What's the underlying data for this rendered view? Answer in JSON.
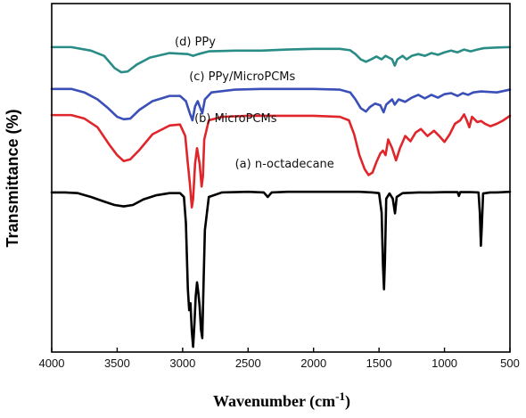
{
  "chart_data": {
    "type": "line",
    "xlabel": "Wavenumber (cm",
    "xlabel_sup": "-1",
    "xlabel_close": ")",
    "ylabel": "Transmittance (%)",
    "xlim": [
      4000,
      500
    ],
    "x_reversed": true,
    "ylim": [
      0,
      100
    ],
    "y_ticks_shown": false,
    "grid": false,
    "x_ticks": [
      {
        "value": 4000,
        "label": "4000"
      },
      {
        "value": 3500,
        "label": "3500"
      },
      {
        "value": 3000,
        "label": "3000"
      },
      {
        "value": 2500,
        "label": "2500"
      },
      {
        "value": 2000,
        "label": "2000"
      },
      {
        "value": 1500,
        "label": "1500"
      },
      {
        "value": 1000,
        "label": "1000"
      },
      {
        "value": 500,
        "label": "500"
      }
    ],
    "series": [
      {
        "name": "(d) PPy",
        "color": "#2a8c86",
        "label_at": [
          3060,
          88
        ],
        "points": [
          [
            4000,
            87.5
          ],
          [
            3850,
            87.5
          ],
          [
            3700,
            86.5
          ],
          [
            3600,
            85
          ],
          [
            3520,
            81.5
          ],
          [
            3470,
            80.3
          ],
          [
            3420,
            80.5
          ],
          [
            3350,
            82.5
          ],
          [
            3250,
            84.5
          ],
          [
            3100,
            85.8
          ],
          [
            2960,
            85.5
          ],
          [
            2920,
            85
          ],
          [
            2880,
            85.5
          ],
          [
            2800,
            86.3
          ],
          [
            2600,
            86.5
          ],
          [
            2400,
            86.5
          ],
          [
            2200,
            86.8
          ],
          [
            2000,
            87
          ],
          [
            1800,
            87
          ],
          [
            1720,
            86.6
          ],
          [
            1680,
            85.5
          ],
          [
            1640,
            84
          ],
          [
            1600,
            83.3
          ],
          [
            1560,
            84
          ],
          [
            1520,
            84.8
          ],
          [
            1480,
            84
          ],
          [
            1450,
            85
          ],
          [
            1400,
            84
          ],
          [
            1380,
            82.2
          ],
          [
            1360,
            84
          ],
          [
            1320,
            85
          ],
          [
            1290,
            84
          ],
          [
            1250,
            85
          ],
          [
            1200,
            85.5
          ],
          [
            1150,
            85
          ],
          [
            1100,
            85.8
          ],
          [
            1050,
            85.3
          ],
          [
            1000,
            86
          ],
          [
            950,
            86.5
          ],
          [
            900,
            86
          ],
          [
            850,
            86.8
          ],
          [
            800,
            86.3
          ],
          [
            750,
            86.8
          ],
          [
            700,
            87.2
          ],
          [
            600,
            87.4
          ],
          [
            500,
            87.5
          ]
        ]
      },
      {
        "name": "(c) PPy/MicroPCMs",
        "color": "#3a4fb8",
        "label_at": [
          2950,
          78
        ],
        "points": [
          [
            4000,
            75.5
          ],
          [
            3850,
            75.5
          ],
          [
            3750,
            74.5
          ],
          [
            3650,
            72.5
          ],
          [
            3570,
            70
          ],
          [
            3500,
            67.5
          ],
          [
            3450,
            66.8
          ],
          [
            3400,
            67
          ],
          [
            3330,
            69.5
          ],
          [
            3230,
            72
          ],
          [
            3100,
            73.5
          ],
          [
            3020,
            73.5
          ],
          [
            2975,
            72
          ],
          [
            2945,
            68.5
          ],
          [
            2925,
            66.5
          ],
          [
            2905,
            70.5
          ],
          [
            2885,
            72
          ],
          [
            2865,
            70
          ],
          [
            2850,
            68.5
          ],
          [
            2830,
            72.5
          ],
          [
            2780,
            74.5
          ],
          [
            2600,
            75.3
          ],
          [
            2400,
            75.5
          ],
          [
            2200,
            75.5
          ],
          [
            2000,
            75.5
          ],
          [
            1800,
            75.3
          ],
          [
            1720,
            74.5
          ],
          [
            1680,
            72.5
          ],
          [
            1640,
            70
          ],
          [
            1600,
            69
          ],
          [
            1570,
            70.3
          ],
          [
            1530,
            71.3
          ],
          [
            1490,
            70.8
          ],
          [
            1465,
            68.8
          ],
          [
            1445,
            71
          ],
          [
            1400,
            72.5
          ],
          [
            1380,
            71
          ],
          [
            1350,
            72.5
          ],
          [
            1300,
            71.8
          ],
          [
            1250,
            73
          ],
          [
            1200,
            73.8
          ],
          [
            1150,
            72.8
          ],
          [
            1100,
            73.8
          ],
          [
            1050,
            73
          ],
          [
            1000,
            74
          ],
          [
            950,
            74.3
          ],
          [
            900,
            73.5
          ],
          [
            860,
            74.3
          ],
          [
            820,
            73.8
          ],
          [
            780,
            74.5
          ],
          [
            720,
            74.8
          ],
          [
            600,
            74.5
          ],
          [
            500,
            75.3
          ]
        ]
      },
      {
        "name": "(b) MicroPCMs",
        "color": "#e0262a",
        "label_at": [
          2910,
          66
        ],
        "points": [
          [
            4000,
            68
          ],
          [
            3850,
            68
          ],
          [
            3750,
            67
          ],
          [
            3650,
            64.5
          ],
          [
            3560,
            59.5
          ],
          [
            3500,
            56.5
          ],
          [
            3450,
            54.8
          ],
          [
            3400,
            55.3
          ],
          [
            3330,
            58
          ],
          [
            3230,
            62.5
          ],
          [
            3100,
            65
          ],
          [
            3020,
            65.3
          ],
          [
            2980,
            62
          ],
          [
            2960,
            54
          ],
          [
            2945,
            48.5
          ],
          [
            2930,
            41.5
          ],
          [
            2920,
            44
          ],
          [
            2905,
            54
          ],
          [
            2890,
            58.5
          ],
          [
            2870,
            54
          ],
          [
            2855,
            47.5
          ],
          [
            2845,
            50.5
          ],
          [
            2835,
            61
          ],
          [
            2800,
            66.5
          ],
          [
            2700,
            67.5
          ],
          [
            2500,
            67.8
          ],
          [
            2300,
            67.8
          ],
          [
            2000,
            67.8
          ],
          [
            1800,
            67.5
          ],
          [
            1730,
            66.5
          ],
          [
            1690,
            62.5
          ],
          [
            1650,
            56.5
          ],
          [
            1610,
            52.5
          ],
          [
            1580,
            50.8
          ],
          [
            1550,
            51.5
          ],
          [
            1520,
            54.5
          ],
          [
            1490,
            57
          ],
          [
            1470,
            57.8
          ],
          [
            1450,
            56.5
          ],
          [
            1430,
            61
          ],
          [
            1400,
            58.5
          ],
          [
            1370,
            55
          ],
          [
            1340,
            58.5
          ],
          [
            1300,
            62
          ],
          [
            1260,
            60.5
          ],
          [
            1220,
            63
          ],
          [
            1180,
            64
          ],
          [
            1130,
            62
          ],
          [
            1080,
            63.5
          ],
          [
            1040,
            62
          ],
          [
            1000,
            60.3
          ],
          [
            960,
            62.5
          ],
          [
            920,
            65.5
          ],
          [
            880,
            66.5
          ],
          [
            850,
            68.2
          ],
          [
            830,
            66.5
          ],
          [
            810,
            64.5
          ],
          [
            790,
            67.5
          ],
          [
            750,
            66
          ],
          [
            720,
            66.3
          ],
          [
            690,
            65.5
          ],
          [
            650,
            64.8
          ],
          [
            600,
            65.5
          ],
          [
            550,
            66.5
          ],
          [
            500,
            67.8
          ]
        ]
      },
      {
        "name": "(a) n-octadecane",
        "color": "#000000",
        "label_at": [
          2600,
          53
        ],
        "points": [
          [
            4000,
            45.8
          ],
          [
            3900,
            45.8
          ],
          [
            3800,
            45.6
          ],
          [
            3700,
            44.5
          ],
          [
            3600,
            43.2
          ],
          [
            3520,
            42.2
          ],
          [
            3450,
            41.8
          ],
          [
            3380,
            42.2
          ],
          [
            3300,
            43.8
          ],
          [
            3200,
            45
          ],
          [
            3100,
            45.6
          ],
          [
            3020,
            45.6
          ],
          [
            2990,
            44.5
          ],
          [
            2975,
            37
          ],
          [
            2960,
            18
          ],
          [
            2950,
            12
          ],
          [
            2940,
            14
          ],
          [
            2930,
            6
          ],
          [
            2920,
            1.5
          ],
          [
            2910,
            8
          ],
          [
            2900,
            16
          ],
          [
            2890,
            20
          ],
          [
            2880,
            17
          ],
          [
            2870,
            13
          ],
          [
            2860,
            6.5
          ],
          [
            2850,
            4
          ],
          [
            2840,
            20
          ],
          [
            2830,
            35
          ],
          [
            2800,
            44.5
          ],
          [
            2700,
            45.8
          ],
          [
            2500,
            46
          ],
          [
            2380,
            45.8
          ],
          [
            2350,
            44.5
          ],
          [
            2320,
            45.8
          ],
          [
            2200,
            46
          ],
          [
            2000,
            46
          ],
          [
            1800,
            46
          ],
          [
            1650,
            46
          ],
          [
            1550,
            45.8
          ],
          [
            1500,
            45.6
          ],
          [
            1480,
            40
          ],
          [
            1470,
            25
          ],
          [
            1462,
            18
          ],
          [
            1455,
            26
          ],
          [
            1445,
            44
          ],
          [
            1420,
            45.5
          ],
          [
            1395,
            44
          ],
          [
            1378,
            39.8
          ],
          [
            1365,
            44.5
          ],
          [
            1320,
            45.6
          ],
          [
            1200,
            45.8
          ],
          [
            1100,
            45.8
          ],
          [
            1000,
            45.9
          ],
          [
            900,
            45.9
          ],
          [
            890,
            44.8
          ],
          [
            880,
            45.9
          ],
          [
            800,
            45.9
          ],
          [
            740,
            45.8
          ],
          [
            730,
            40
          ],
          [
            722,
            30.5
          ],
          [
            715,
            36
          ],
          [
            705,
            45.5
          ],
          [
            650,
            45.8
          ],
          [
            600,
            45.8
          ],
          [
            500,
            46
          ]
        ]
      }
    ]
  }
}
